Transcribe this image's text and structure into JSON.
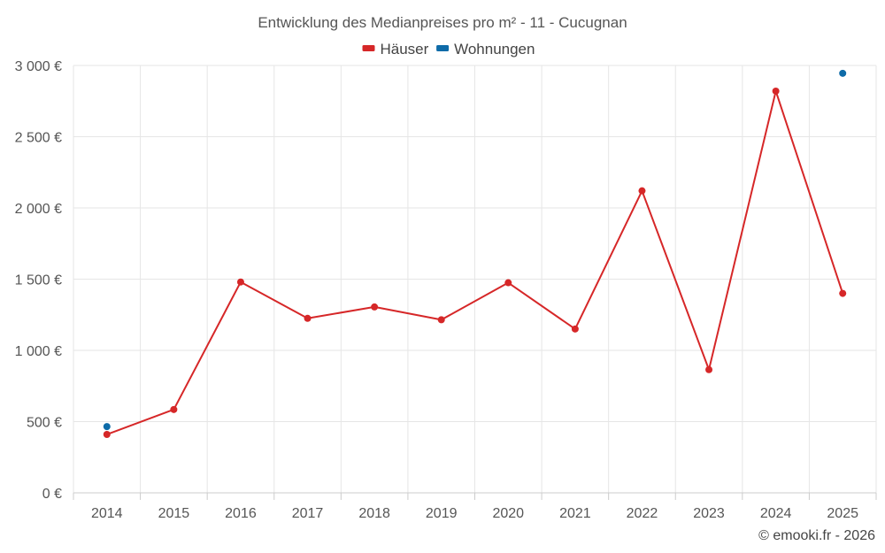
{
  "chart_data": {
    "type": "line",
    "title": "Entwicklung des Medianpreises pro m² - 11 - Cucugnan",
    "categories": [
      "2014",
      "2015",
      "2016",
      "2017",
      "2018",
      "2019",
      "2020",
      "2021",
      "2022",
      "2023",
      "2024",
      "2025"
    ],
    "series": [
      {
        "name": "Häuser",
        "color": "#d62728",
        "values": [
          410,
          585,
          1480,
          1225,
          1305,
          1215,
          1475,
          1150,
          2120,
          865,
          2820,
          1400
        ]
      },
      {
        "name": "Wohnungen",
        "color": "#0e6ba8",
        "values": [
          465,
          null,
          null,
          null,
          null,
          null,
          null,
          null,
          null,
          null,
          null,
          2945
        ]
      }
    ],
    "ylim": [
      0,
      3000
    ],
    "yticks": [
      0,
      500,
      1000,
      1500,
      2000,
      2500,
      3000
    ],
    "ytick_labels": [
      "0 €",
      "500 €",
      "1 000 €",
      "1 500 €",
      "2 000 €",
      "2 500 €",
      "3 000 €"
    ],
    "xlabel": "",
    "ylabel": "",
    "grid": true,
    "legend_position": "top-center"
  },
  "credit": "© emooki.fr - 2026"
}
